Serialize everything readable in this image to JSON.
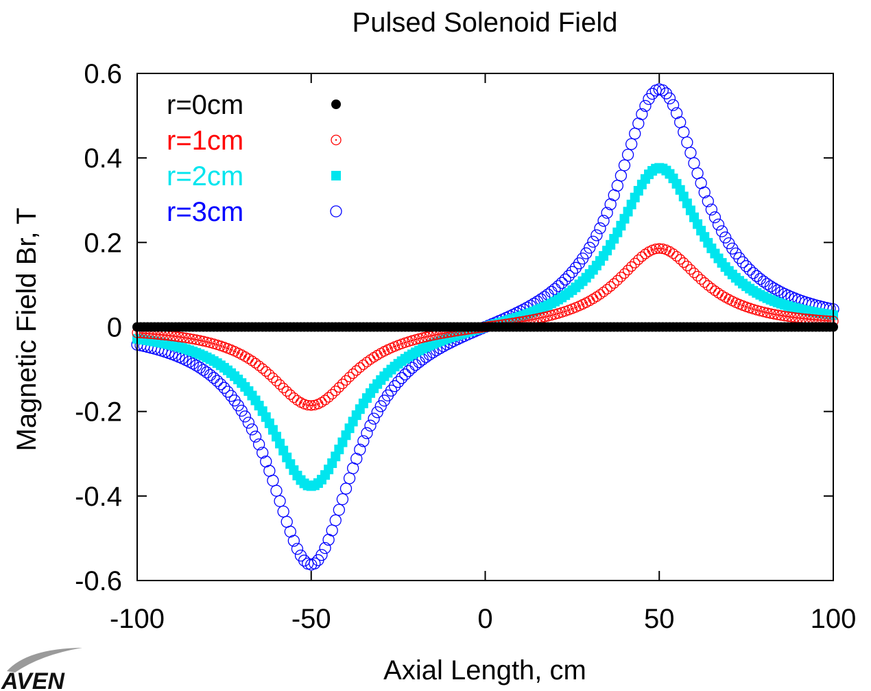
{
  "chart_data": {
    "type": "scatter",
    "title": "Pulsed Solenoid Field",
    "xlabel": "Axial Length, cm",
    "ylabel": "Magnetic Field Br, T",
    "xlim": [
      -100,
      100
    ],
    "ylim": [
      -0.6,
      0.6
    ],
    "x_ticks": [
      "-100",
      "-50",
      "0",
      "50",
      "100"
    ],
    "y_ticks": [
      "0.6",
      "0.4",
      "0.2",
      "0",
      "-0.2",
      "-0.4",
      "-0.6"
    ],
    "grid": false,
    "legend_position": "top-left",
    "x_step": 1,
    "series": [
      {
        "name": "r=0cm",
        "color": "#000000",
        "marker": "filled-circle",
        "peak": 0.0,
        "width": 15
      },
      {
        "name": "r=1cm",
        "color": "#ff0000",
        "marker": "dotted-circle",
        "peak": 0.19,
        "width": 15
      },
      {
        "name": "r=2cm",
        "color": "#00e5ee",
        "marker": "filled-square",
        "peak": 0.385,
        "width": 15
      },
      {
        "name": "r=3cm",
        "color": "#0000ff",
        "marker": "open-circle",
        "peak": 0.575,
        "width": 15
      }
    ]
  },
  "logo": {
    "text": "AVEN"
  }
}
